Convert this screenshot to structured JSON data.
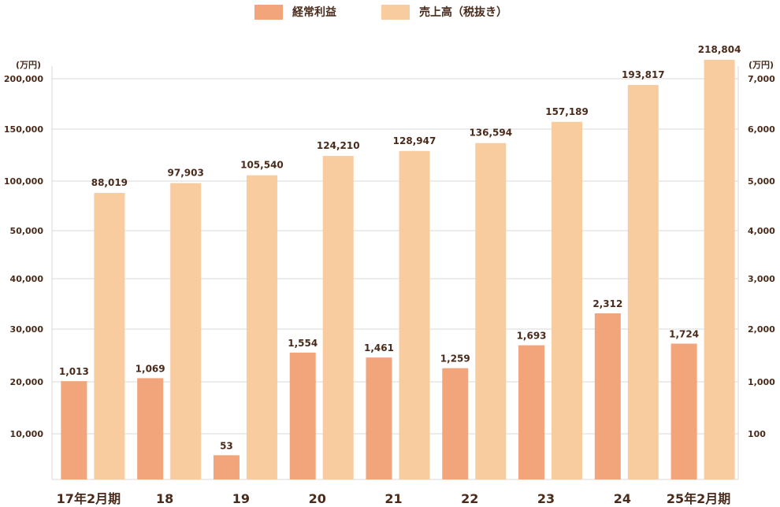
{
  "legend": {
    "profit_label": "経常利益",
    "sales_label": "売上高（税抜き）"
  },
  "units": {
    "left": "(万円)",
    "right": "(万円)"
  },
  "colors": {
    "profit": "#f2a47a",
    "sales": "#f8cc9f",
    "text": "#4a2b1b",
    "grid": "#d9d9d9"
  },
  "chart_data": {
    "type": "bar",
    "categories": [
      "17年2月期",
      "18",
      "19",
      "20",
      "21",
      "22",
      "23",
      "24",
      "25年2月期"
    ],
    "series": [
      {
        "name": "経常利益",
        "axis": "right",
        "values": [
          1013,
          1069,
          53,
          1554,
          1461,
          1259,
          1693,
          2312,
          1724
        ],
        "labels": [
          "1,013",
          "1,069",
          "53",
          "1,554",
          "1,461",
          "1,259",
          "1,693",
          "2,312",
          "1,724"
        ]
      },
      {
        "name": "売上高（税抜き）",
        "axis": "left",
        "values": [
          88019,
          97903,
          105540,
          124210,
          128947,
          136594,
          157189,
          193817,
          218804
        ],
        "labels": [
          "88,019",
          "97,903",
          "105,540",
          "124,210",
          "128,947",
          "136,594",
          "157,189",
          "193,817",
          "218,804"
        ]
      }
    ],
    "left_axis_ticks": [
      "10,000",
      "20,000",
      "30,000",
      "40,000",
      "50,000",
      "100,000",
      "150,000",
      "200,000"
    ],
    "left_axis_values": [
      10000,
      20000,
      30000,
      40000,
      50000,
      100000,
      150000,
      200000
    ],
    "right_axis_ticks": [
      "100",
      "1,000",
      "2,000",
      "3,000",
      "4,000",
      "5,000",
      "6,000",
      "7,000"
    ],
    "right_axis_values": [
      100,
      1000,
      2000,
      3000,
      4000,
      5000,
      6000,
      7000
    ],
    "axis_scale": "piecewise (broken scale)",
    "grid": true,
    "legend_position": "top-center"
  }
}
